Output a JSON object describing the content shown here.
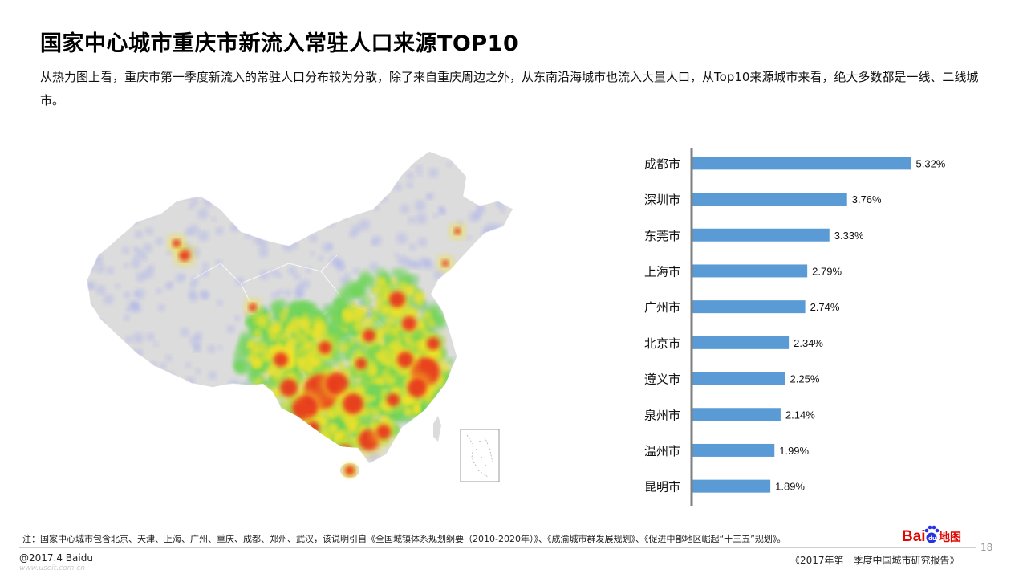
{
  "page": {
    "title": "国家中心城市重庆市新流入常驻人口来源TOP10",
    "description": "从热力图上看，重庆市第一季度新流入的常驻人口分布较为分散，除了来自重庆周边之外，从东南沿海城市也流入大量人口，从Top10来源城市来看，绝大多数都是一线、二线城市。",
    "note": "注：国家中心城市包含北京、天津、上海、广州、重庆、成都、郑州、武汉，该说明引自《全国城镇体系规划纲要（2010-2020年）》、《成渝城市群发展规划》、《促进中部地区崛起“十三五”规划》。",
    "page_number": "18",
    "copyright": "@2017.4 Baidu",
    "watermark": "www.useit.com.cn",
    "report_name": "《2017年第一季度中国城市研究报告》",
    "logo_text": "Bai",
    "logo_text_cn": "地图"
  },
  "colors": {
    "bar": "#5B9BD5",
    "axis": "#7f7f7f",
    "map_land": "#dcdcdc",
    "heat_low": "#9fa6f0",
    "heat_mid": "#6fd45a",
    "heat_high": "#f2e22a",
    "heat_top": "#e8281f",
    "logo_red": "#e10602",
    "logo_blue": "#2932e1"
  },
  "chart_data": {
    "type": "bar",
    "orientation": "horizontal",
    "categories": [
      "成都市",
      "深圳市",
      "东莞市",
      "上海市",
      "广州市",
      "北京市",
      "遵义市",
      "泉州市",
      "温州市",
      "昆明市"
    ],
    "values": [
      5.32,
      3.76,
      3.33,
      2.79,
      2.74,
      2.34,
      2.25,
      2.14,
      1.99,
      1.89
    ],
    "value_labels": [
      "5.32%",
      "3.76%",
      "3.33%",
      "2.79%",
      "2.74%",
      "2.34%",
      "2.25%",
      "2.14%",
      "1.99%",
      "1.89%"
    ],
    "unit": "%",
    "xlim": [
      0,
      6
    ],
    "grid": false,
    "legend": "none"
  }
}
